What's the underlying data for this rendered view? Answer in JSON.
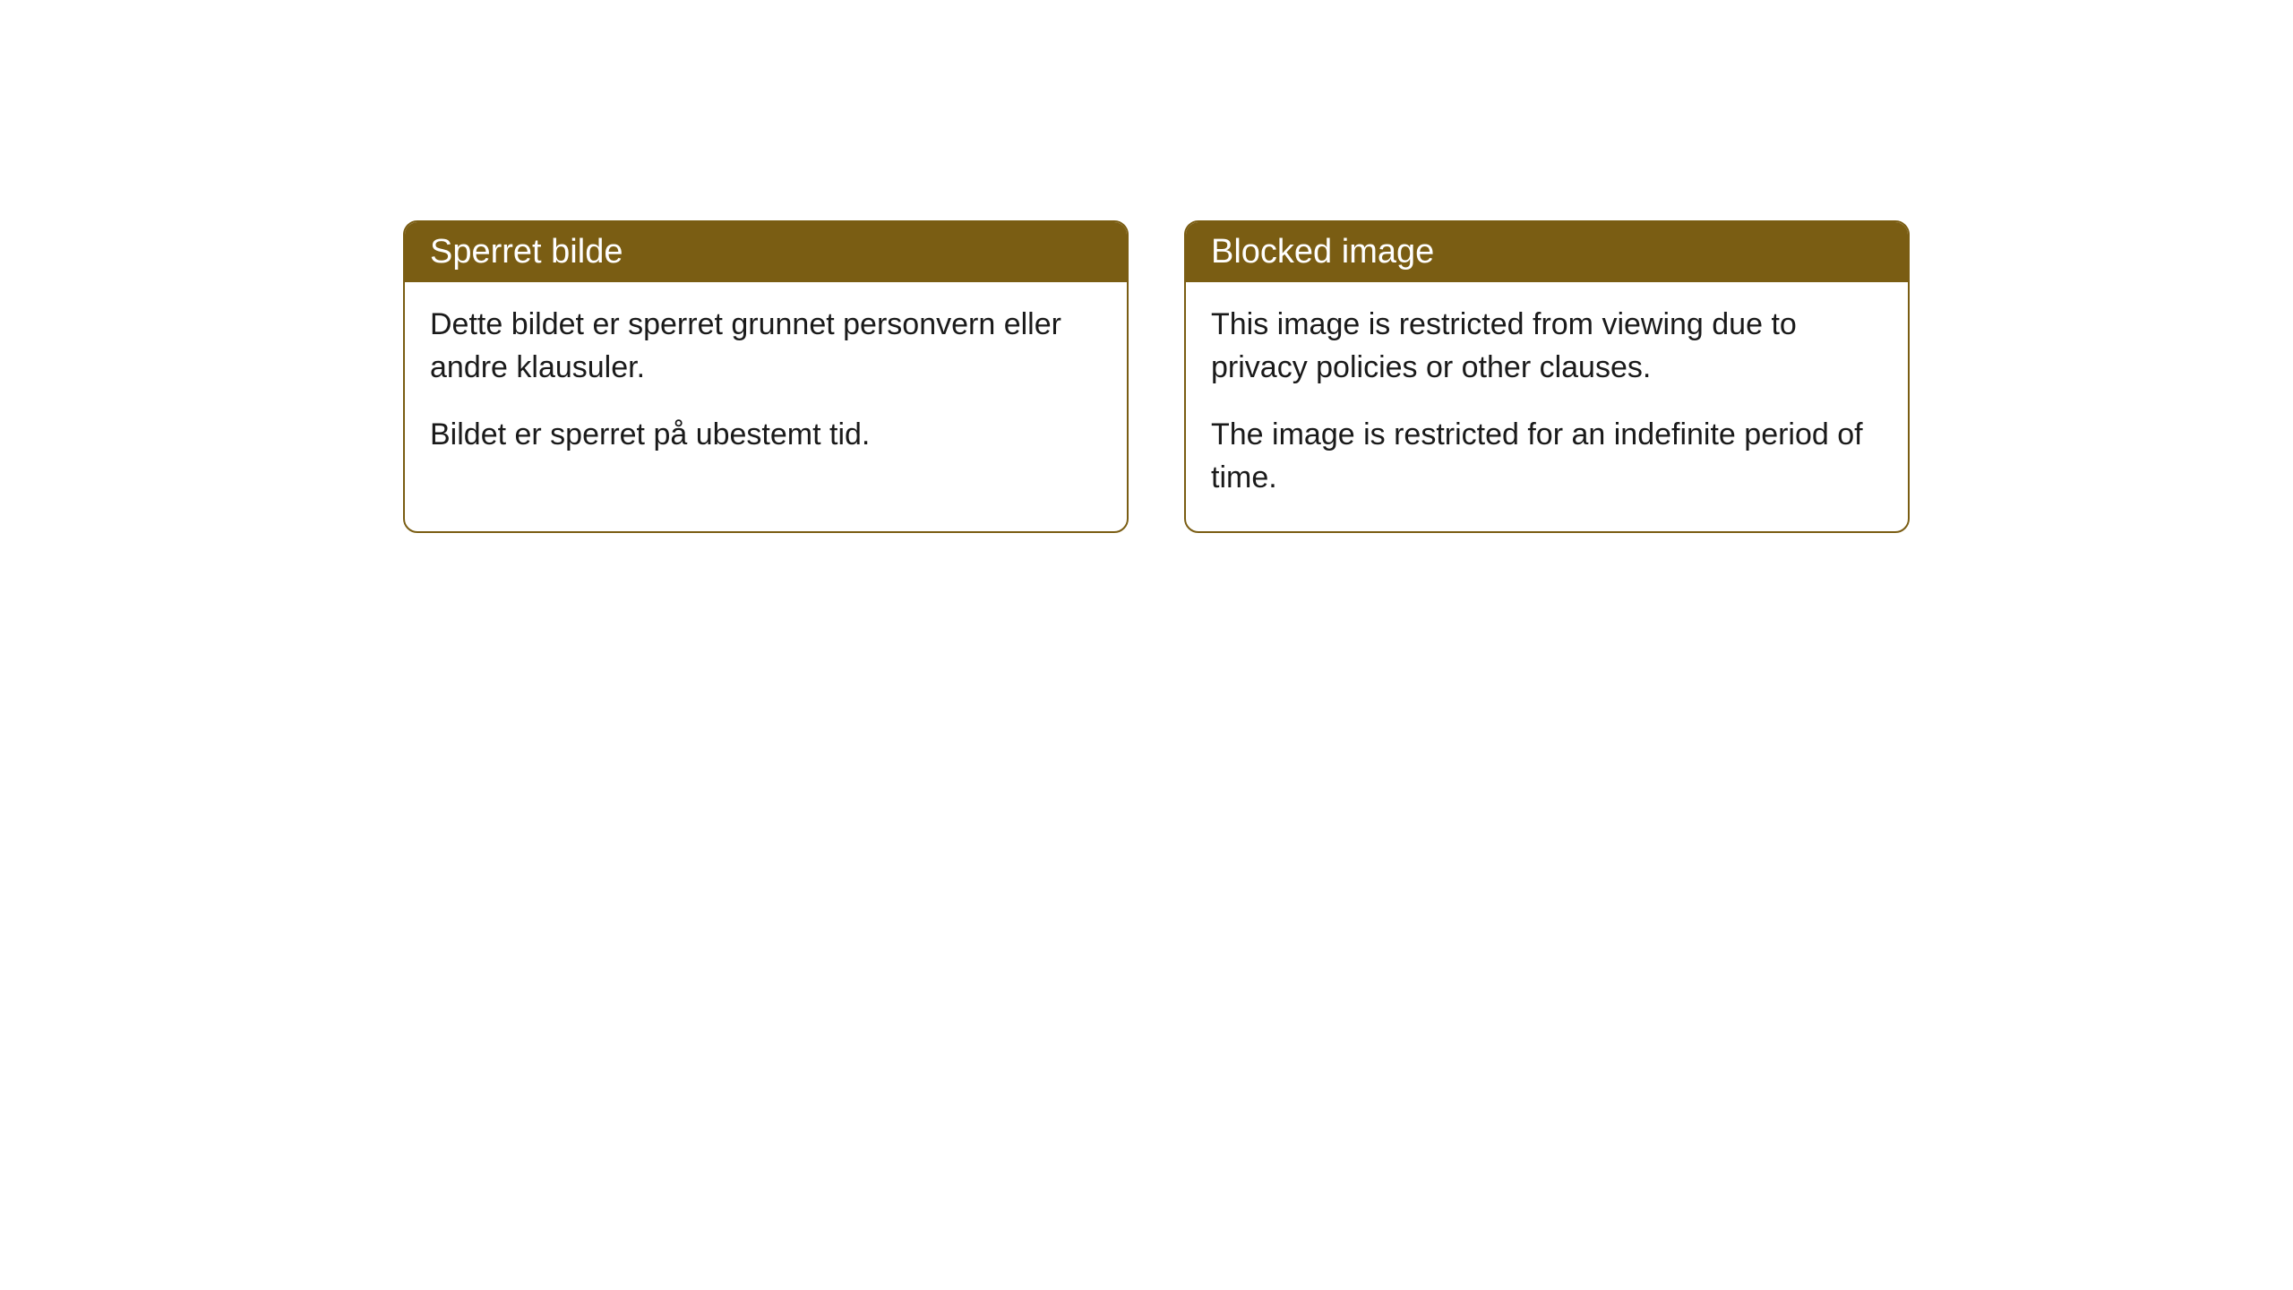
{
  "cards": [
    {
      "title": "Sperret bilde",
      "paragraph1": "Dette bildet er sperret grunnet personvern eller andre klausuler.",
      "paragraph2": "Bildet er sperret på ubestemt tid."
    },
    {
      "title": "Blocked image",
      "paragraph1": "This image is restricted from viewing due to privacy policies or other clauses.",
      "paragraph2": "The image is restricted for an indefinite period of time."
    }
  ],
  "style": {
    "header_bg": "#7a5d13",
    "header_text_color": "#ffffff",
    "border_color": "#7a5d13",
    "body_bg": "#ffffff",
    "body_text_color": "#1a1a1a",
    "border_radius": 16,
    "title_fontsize": 38,
    "body_fontsize": 34
  }
}
